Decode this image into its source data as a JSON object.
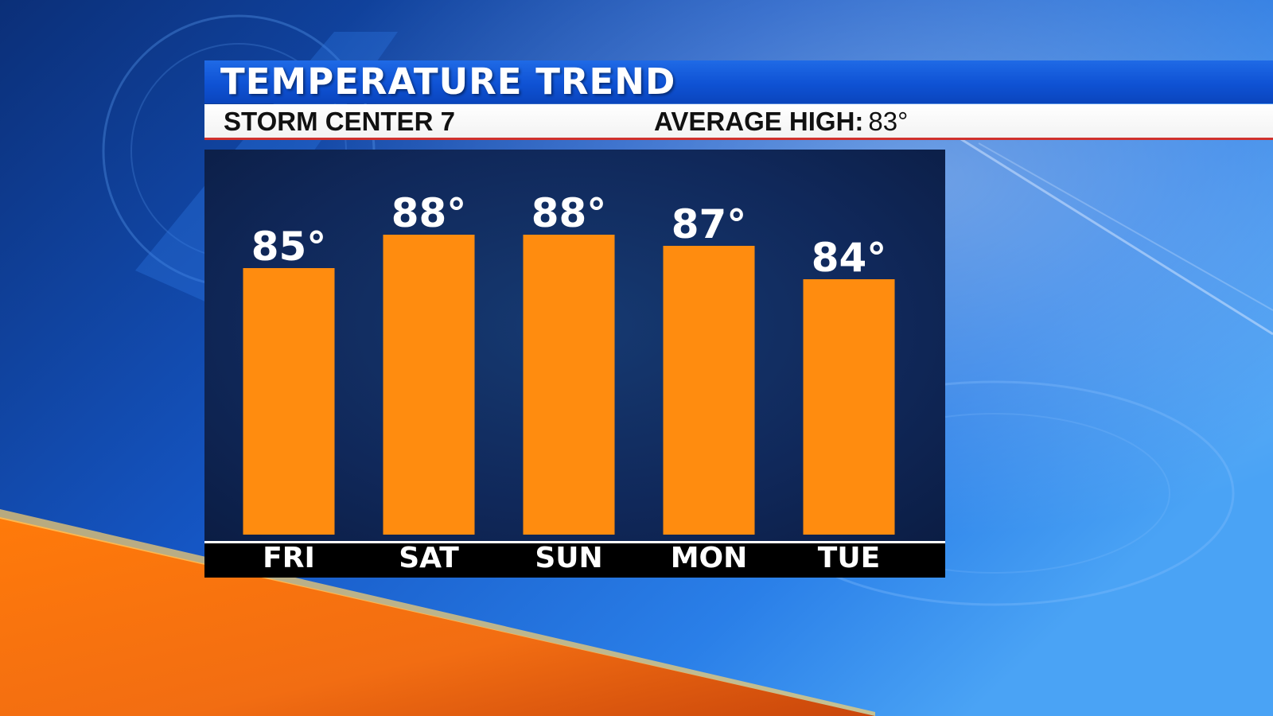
{
  "header": {
    "title": "TEMPERATURE TREND",
    "station": "STORM CENTER 7",
    "average_label": "AVERAGE HIGH:",
    "average_value": "83°"
  },
  "colors": {
    "bar": "#ff8c0f",
    "title_bar": "#0f52d4",
    "panel": "#10285a",
    "accent_red": "#d0312d"
  },
  "chart_data": {
    "type": "bar",
    "categories": [
      "FRI",
      "SAT",
      "SUN",
      "MON",
      "TUE"
    ],
    "values": [
      85,
      88,
      88,
      87,
      84
    ],
    "value_labels": [
      "85°",
      "88°",
      "88°",
      "87°",
      "84°"
    ],
    "title": "TEMPERATURE TREND",
    "subtitle": "STORM CENTER 7",
    "unit": "°",
    "grid": false
  }
}
